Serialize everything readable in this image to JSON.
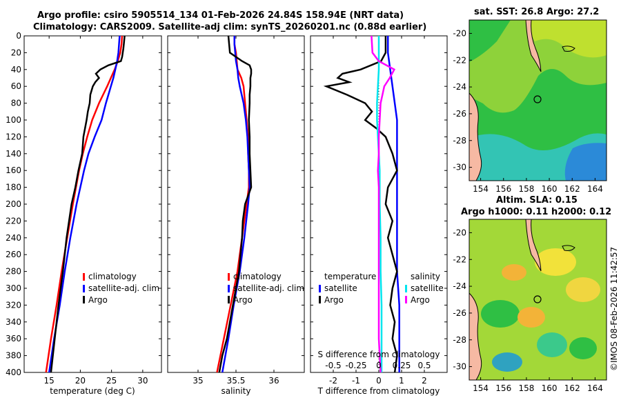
{
  "header": {
    "line1": "Argo profile: csiro 5905514_134 01-Feb-2026 24.84S 158.94E (NRT data)",
    "line2": "Climatology: CARS2009. Satellite-adj clim: synTS_20260201.nc (0.88d earlier)"
  },
  "credit": "©IMOS 08-Feb-2026 11:42:57",
  "colors": {
    "argo": "#000000",
    "clim": "#ff0000",
    "sat": "#0000ff",
    "sal_diff": "#00e5ee",
    "sal_sat": "#ff00ff"
  },
  "chart_data": [
    {
      "type": "line",
      "id": "temperature_profile",
      "xlabel": "temperature (deg C)",
      "ylabel": "depth",
      "xlim": [
        11,
        33
      ],
      "ylim": [
        0,
        400
      ],
      "xticks": [
        15,
        20,
        25,
        30
      ],
      "yticks": [
        0,
        20,
        40,
        60,
        80,
        100,
        120,
        140,
        160,
        180,
        200,
        220,
        240,
        260,
        280,
        300,
        320,
        340,
        360,
        380,
        400
      ],
      "legend": [
        "climatology",
        "satellite-adj. clim",
        "Argo"
      ],
      "series": [
        {
          "name": "climatology",
          "color": "#ff0000",
          "depth": [
            0,
            10,
            20,
            30,
            40,
            50,
            60,
            80,
            100,
            120,
            140,
            160,
            180,
            200,
            240,
            280,
            320,
            360,
            400
          ],
          "values": [
            26.7,
            26.6,
            26.4,
            26.0,
            25.5,
            24.9,
            24.3,
            23.0,
            21.9,
            21.1,
            20.4,
            19.8,
            19.3,
            18.8,
            17.9,
            17.0,
            16.2,
            15.3,
            14.5
          ]
        },
        {
          "name": "satellite-adj. clim",
          "color": "#0000ff",
          "depth": [
            0,
            10,
            20,
            30,
            40,
            50,
            60,
            80,
            100,
            120,
            140,
            160,
            180,
            200,
            240,
            280,
            320,
            360,
            400
          ],
          "values": [
            26.3,
            26.2,
            26.1,
            25.9,
            25.6,
            25.3,
            24.9,
            24.1,
            23.4,
            22.3,
            21.3,
            20.6,
            20.0,
            19.4,
            18.4,
            17.5,
            16.7,
            15.8,
            15.0
          ]
        },
        {
          "name": "Argo",
          "color": "#000000",
          "depth": [
            0,
            8,
            15,
            25,
            30,
            35,
            40,
            45,
            50,
            55,
            60,
            70,
            80,
            90,
            100,
            120,
            140,
            160,
            180,
            200,
            240,
            280,
            320,
            360,
            400
          ],
          "values": [
            27.1,
            27.0,
            26.9,
            26.7,
            26.5,
            24.5,
            23.2,
            22.5,
            23.0,
            22.4,
            22.0,
            21.6,
            21.5,
            21.2,
            21.0,
            20.5,
            20.3,
            19.7,
            19.2,
            18.6,
            17.8,
            17.2,
            16.5,
            15.9,
            15.3
          ]
        }
      ]
    },
    {
      "type": "line",
      "id": "salinity_profile",
      "xlabel": "salinity",
      "ylabel": "depth",
      "xlim": [
        34.6,
        36.4
      ],
      "ylim": [
        0,
        400
      ],
      "xticks": [
        35,
        35.5,
        36
      ],
      "xtick_labels": [
        "35",
        "35.5",
        "36"
      ],
      "legend": [
        "climatology",
        "satellite-adj. clim",
        "Argo"
      ],
      "series": [
        {
          "name": "climatology",
          "color": "#ff0000",
          "depth": [
            0,
            10,
            20,
            30,
            40,
            50,
            60,
            80,
            100,
            120,
            140,
            160,
            180,
            200,
            240,
            280,
            320,
            360,
            400
          ],
          "values": [
            35.48,
            35.48,
            35.5,
            35.51,
            35.52,
            35.57,
            35.6,
            35.62,
            35.64,
            35.66,
            35.66,
            35.67,
            35.67,
            35.64,
            35.58,
            35.52,
            35.43,
            35.34,
            35.25
          ]
        },
        {
          "name": "satellite-adj. clim",
          "color": "#0000ff",
          "depth": [
            0,
            10,
            20,
            30,
            40,
            50,
            60,
            80,
            100,
            120,
            140,
            160,
            180,
            200,
            240,
            280,
            320,
            360,
            400
          ],
          "values": [
            35.48,
            35.48,
            35.49,
            35.5,
            35.52,
            35.53,
            35.55,
            35.6,
            35.63,
            35.65,
            35.66,
            35.67,
            35.68,
            35.66,
            35.61,
            35.55,
            35.47,
            35.4,
            35.32
          ]
        },
        {
          "name": "Argo",
          "color": "#000000",
          "depth": [
            0,
            10,
            20,
            30,
            35,
            40,
            45,
            50,
            60,
            70,
            80,
            100,
            120,
            140,
            160,
            180,
            200,
            220,
            240,
            260,
            280,
            300,
            320,
            340,
            360,
            380,
            400
          ],
          "values": [
            35.4,
            35.41,
            35.42,
            35.58,
            35.68,
            35.7,
            35.7,
            35.69,
            35.69,
            35.68,
            35.68,
            35.67,
            35.68,
            35.68,
            35.69,
            35.7,
            35.62,
            35.59,
            35.58,
            35.56,
            35.54,
            35.5,
            35.46,
            35.42,
            35.38,
            35.32,
            35.28
          ]
        }
      ]
    },
    {
      "type": "line",
      "id": "difference_profile",
      "xlabel": "T difference from climatology",
      "x2label": "S difference from climatology",
      "ylabel": "depth",
      "xlim": [
        -3,
        3
      ],
      "xticks": [
        -2,
        -1,
        0,
        1,
        2
      ],
      "x2lim": [
        -0.75,
        0.75
      ],
      "x2ticks": [
        -0.5,
        -0.25,
        0,
        0.25,
        0.5
      ],
      "x2tick_labels": [
        "-0.5",
        "-0.25",
        "0",
        "0.25",
        "0.5"
      ],
      "ylim": [
        0,
        400
      ],
      "legend_temperature": {
        "title": "temperature",
        "items": [
          "satellite",
          "Argo"
        ]
      },
      "legend_salinity": {
        "title": "salinity",
        "items": [
          "satellite",
          "Argo"
        ]
      },
      "series": [
        {
          "name": "temperature satellite",
          "color": "#0000ff",
          "axis": "T",
          "depth": [
            0,
            20,
            40,
            60,
            80,
            100,
            120,
            140,
            160,
            200,
            240,
            280,
            320,
            360,
            400
          ],
          "values": [
            0.4,
            0.4,
            0.5,
            0.6,
            0.7,
            0.8,
            0.8,
            0.8,
            0.8,
            0.8,
            0.8,
            0.8,
            0.9,
            0.9,
            0.9
          ]
        },
        {
          "name": "temperature Argo",
          "color": "#000000",
          "axis": "T",
          "depth": [
            0,
            20,
            30,
            40,
            45,
            50,
            55,
            60,
            70,
            80,
            90,
            100,
            110,
            120,
            140,
            160,
            180,
            200,
            220,
            240,
            260,
            280,
            300,
            320,
            340,
            360,
            380,
            400
          ],
          "values": [
            0.3,
            0.3,
            0.1,
            -0.8,
            -1.6,
            -1.8,
            -1.3,
            -2.3,
            -1.4,
            -0.6,
            -0.3,
            -0.6,
            -0.1,
            0.3,
            0.6,
            0.8,
            0.4,
            0.3,
            0.6,
            0.4,
            0.6,
            0.8,
            0.6,
            0.5,
            0.7,
            0.6,
            0.8,
            0.7
          ]
        },
        {
          "name": "salinity satellite",
          "color": "#00e5ee",
          "axis": "S",
          "depth": [
            0,
            20,
            40,
            60,
            80,
            100,
            120,
            140,
            160,
            200,
            240,
            280,
            320,
            360,
            400
          ],
          "values": [
            0.0,
            0.0,
            0.0,
            -0.01,
            -0.02,
            -0.02,
            -0.01,
            0.0,
            0.01,
            0.01,
            0.02,
            0.02,
            0.03,
            0.03,
            0.03
          ]
        },
        {
          "name": "salinity Argo",
          "color": "#ff00ff",
          "axis": "S",
          "depth": [
            0,
            20,
            30,
            40,
            50,
            60,
            70,
            80,
            100,
            120,
            140,
            160,
            180,
            200,
            240,
            280,
            320,
            360,
            400
          ],
          "values": [
            -0.08,
            -0.07,
            0.0,
            0.17,
            0.12,
            0.06,
            0.04,
            0.02,
            0.01,
            0.0,
            0.0,
            -0.01,
            0.0,
            0.0,
            0.0,
            0.0,
            0.0,
            0.0,
            0.02
          ]
        }
      ]
    },
    {
      "type": "heatmap",
      "id": "sst_map",
      "title": "sat. SST: 26.8 Argo: 27.2",
      "sst_satellite": 26.8,
      "sst_argo": 27.2,
      "xlim": [
        153,
        165
      ],
      "ylim": [
        -31,
        -19
      ],
      "xticks": [
        154,
        156,
        158,
        160,
        162,
        164
      ],
      "yticks": [
        -20,
        -22,
        -24,
        -26,
        -28,
        -30
      ],
      "marker": {
        "lon": 158.94,
        "lat": -24.84
      }
    },
    {
      "type": "heatmap",
      "id": "sla_map",
      "title_line1": "Altim. SLA: 0.15",
      "title_line2": "Argo h1000: 0.11 h2000: 0.12",
      "sla": 0.15,
      "h1000": 0.11,
      "h2000": 0.12,
      "xlim": [
        153,
        165
      ],
      "ylim": [
        -31,
        -19
      ],
      "xticks": [
        154,
        156,
        158,
        160,
        162,
        164
      ],
      "yticks": [
        -20,
        -22,
        -24,
        -26,
        -28,
        -30
      ],
      "marker": {
        "lon": 158.94,
        "lat": -24.84
      }
    }
  ]
}
